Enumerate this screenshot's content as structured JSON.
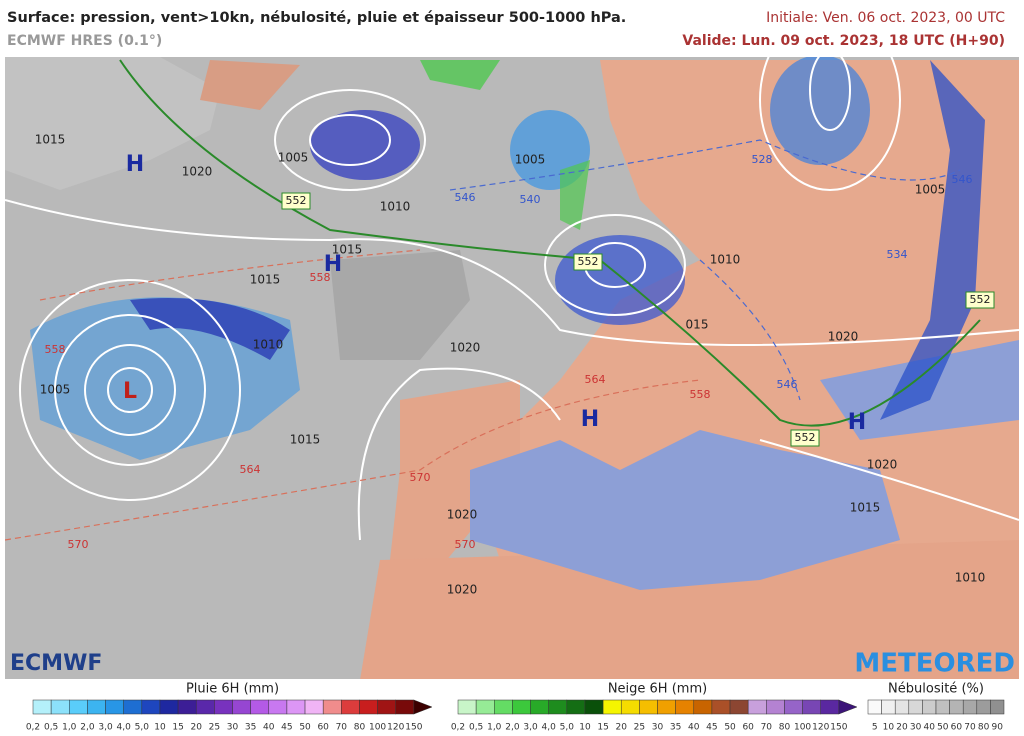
{
  "header": {
    "title": "Surface: pression, vent>10kn, nébulosité, pluie et épaisseur 500-1000 hPa.",
    "model": "ECMWF HRES (0.1°)",
    "initial": "Initiale: Ven. 06 oct. 2023, 00 UTC",
    "valid": "Valide: Lun. 09 oct. 2023, 18 UTC (H+90)"
  },
  "logos": {
    "left": "ECMWF",
    "right": "METEORED"
  },
  "map": {
    "pressure_labels": [
      "1015",
      "1020",
      "1005",
      "1010",
      "1015",
      "1015",
      "1005",
      "1010",
      "1005",
      "1020",
      "1020",
      "1015",
      "1010",
      "1005",
      "1020",
      "1015",
      "1010",
      "1020",
      "1020",
      "015"
    ],
    "thickness_boxes": [
      "552",
      "552",
      "552",
      "552"
    ],
    "thickness_labels": [
      "558",
      "564",
      "558",
      "564",
      "570",
      "570",
      "570",
      "558",
      "546",
      "540",
      "546",
      "528",
      "534",
      "546"
    ],
    "centers": [
      "H",
      "H",
      "L",
      "H",
      "H"
    ]
  },
  "legends": {
    "rain": {
      "title": "Pluie 6H (mm)",
      "ticks": [
        "0,2",
        "0,5",
        "1,0",
        "2,0",
        "3,0",
        "4,0",
        "5,0",
        "10",
        "15",
        "20",
        "25",
        "30",
        "35",
        "40",
        "45",
        "50",
        "60",
        "70",
        "80",
        "100",
        "120",
        "150"
      ],
      "colors": [
        "#b4f0fa",
        "#8ce1fa",
        "#5acdfa",
        "#3cb4f0",
        "#2896e6",
        "#1e6ed2",
        "#1e46be",
        "#1e28a0",
        "#3c1e96",
        "#5a28aa",
        "#7832be",
        "#9646d2",
        "#b45ae6",
        "#c878f0",
        "#dc96f5",
        "#f0b4f5",
        "#f08c8c",
        "#dc3c3c",
        "#c81e1e",
        "#a01414",
        "#780a0a",
        "#3c0000"
      ]
    },
    "snow": {
      "title": "Neige 6H (mm)",
      "ticks": [
        "0,2",
        "0,5",
        "1,0",
        "2,0",
        "3,0",
        "4,0",
        "5,0",
        "10",
        "15",
        "20",
        "25",
        "30",
        "35",
        "40",
        "45",
        "50",
        "60",
        "70",
        "80",
        "100",
        "120",
        "150"
      ],
      "colors": [
        "#c8f5c8",
        "#96eb96",
        "#64dc64",
        "#3cc83c",
        "#28aa28",
        "#1e8c1e",
        "#146e14",
        "#0a500a",
        "#f5f500",
        "#f5dc00",
        "#f5be00",
        "#f0a000",
        "#e68200",
        "#c86400",
        "#aa5028",
        "#8c4632",
        "#c8a0dc",
        "#b482d2",
        "#9664c8",
        "#7846b4",
        "#5a28a0",
        "#3c1478"
      ]
    },
    "cloud": {
      "title": "Nébulosité (%)",
      "ticks": [
        "5",
        "10",
        "20",
        "30",
        "40",
        "50",
        "60",
        "70",
        "80",
        "90"
      ],
      "colors": [
        "#fafafa",
        "#f0f0f0",
        "#e4e4e4",
        "#d8d8d8",
        "#cccccc",
        "#c0c0c0",
        "#b4b4b4",
        "#a8a8a8",
        "#9c9c9c",
        "#909090"
      ]
    }
  }
}
